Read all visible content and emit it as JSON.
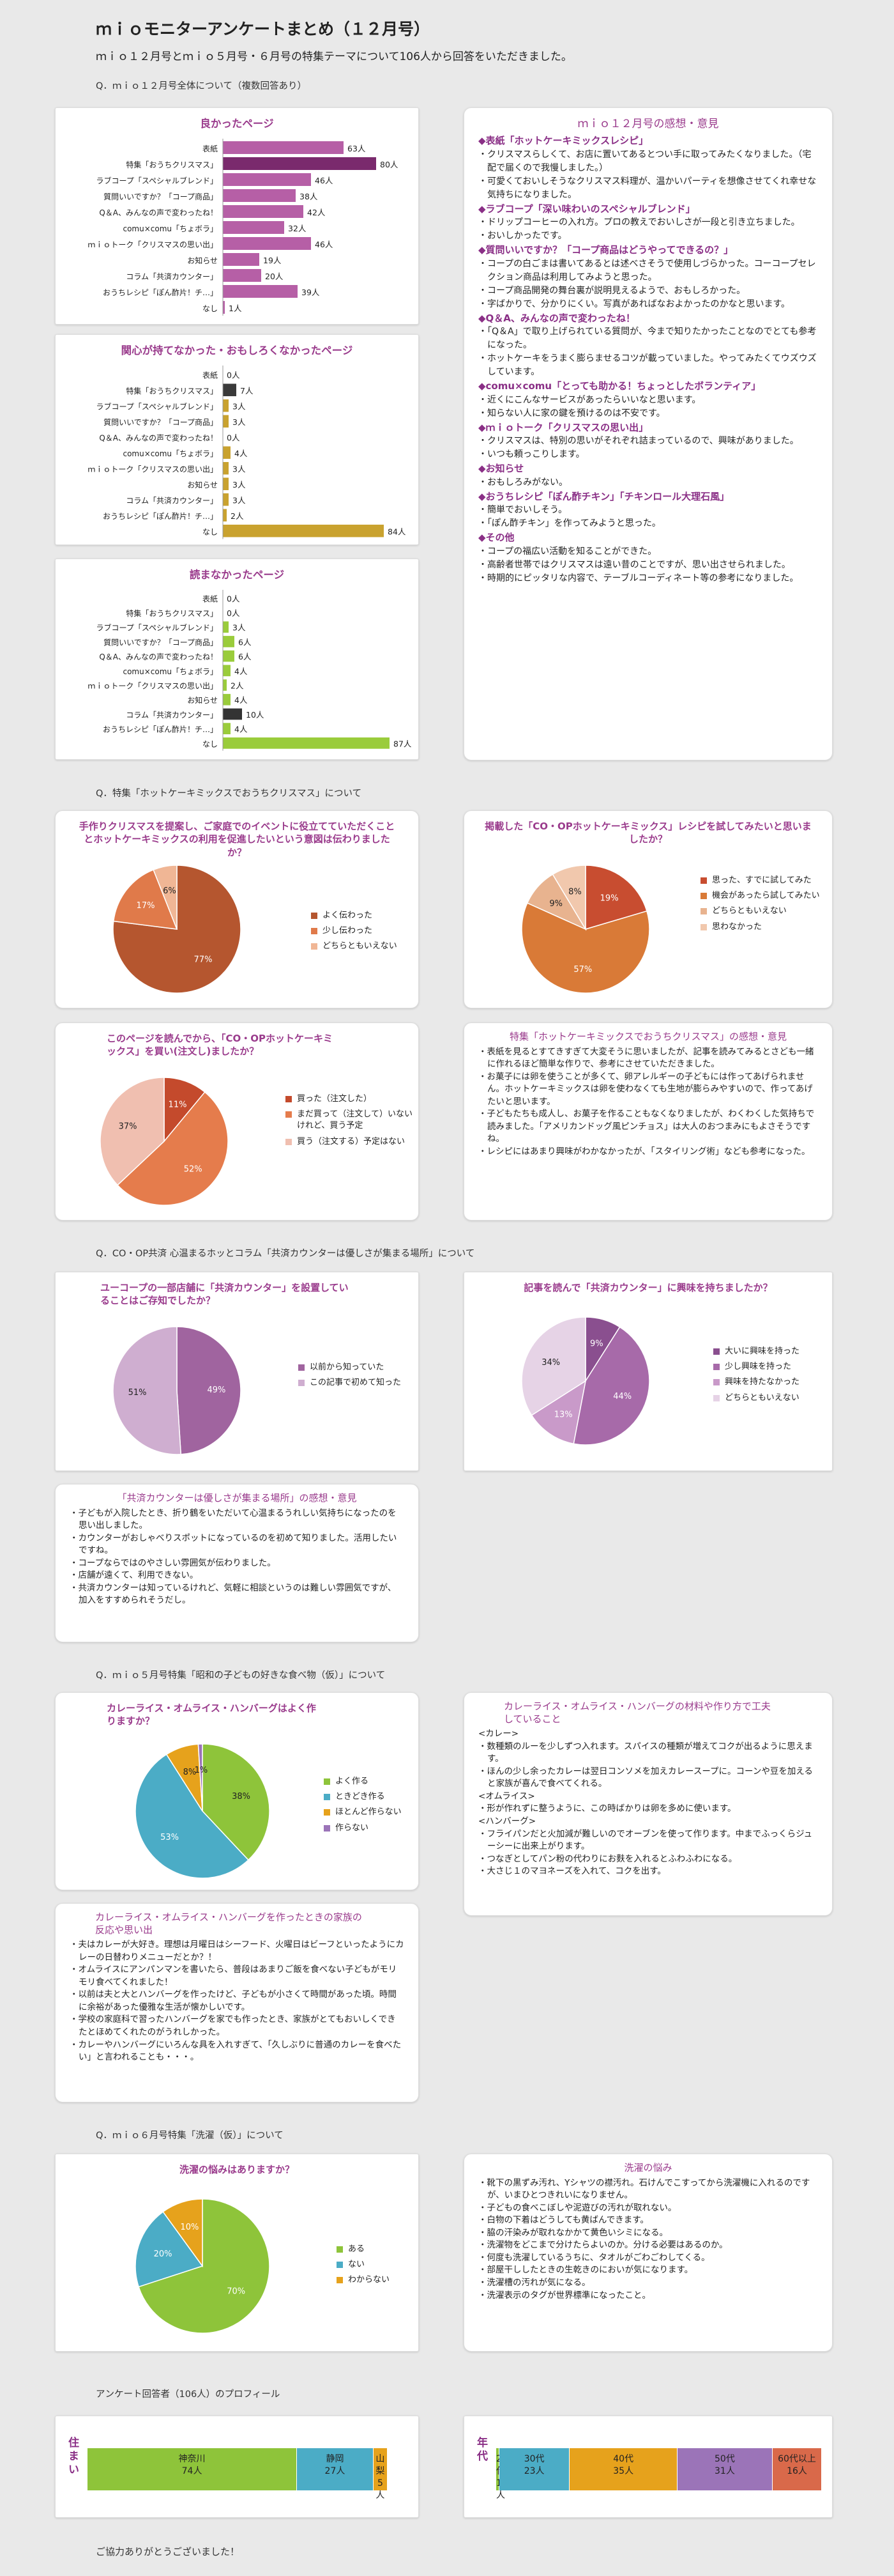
{
  "title": "ｍｉｏモニターアンケートまとめ（１２月号）",
  "subtitle": "ｍｉｏ１２月号とｍｉｏ５月号・６月号の特集テーマについて106人から回答をいただきました。",
  "q1": {
    "heading": "Q．ｍｉｏ１２月号全体について（複数回答あり）",
    "good": {
      "title": "良かったページ"
    },
    "notinterest": {
      "title": "関心が持てなかった・おもしろくなかったページ"
    },
    "notread": {
      "title": "読まなかったページ"
    },
    "categories": [
      "表紙",
      "特集「おうちクリスマス」",
      "ラブコープ「スペシャルブレンド」",
      "質問いいですか？「コープ商品」",
      "Q＆A、みんなの声で変わったね！",
      "comu×comu「ちょボラ」",
      "ｍｉｏトーク「クリスマスの思い出」",
      "お知らせ",
      "コラム「共済カウンター」",
      "おうちレシピ「ぽん酢片！チ…」",
      "なし"
    ],
    "good_labels": [
      "63人",
      "80人",
      "46人",
      "38人",
      "42人",
      "32人",
      "46人",
      "19人",
      "20人",
      "39人",
      "1人"
    ],
    "notinterest_labels": [
      "0人",
      "7人",
      "3人",
      "3人",
      "0人",
      "4人",
      "3人",
      "3人",
      "3人",
      "2人",
      "84人"
    ],
    "notread_labels": [
      "0人",
      "0人",
      "3人",
      "6人",
      "6人",
      "4人",
      "2人",
      "4人",
      "10人",
      "4人",
      "87人"
    ]
  },
  "chart_data": [
    {
      "type": "bar",
      "orientation": "horizontal",
      "title": "良かったページ",
      "categories": [
        "表紙",
        "特集「おうちクリスマス」",
        "ラブコープ「スペシャルブレンド」",
        "質問いいですか？「コープ商品」",
        "Q＆A、みんなの声で変わったね！",
        "comu×comu「ちょボラ」",
        "ｍｉｏトーク「クリスマスの思い出」",
        "お知らせ",
        "コラム「共済カウンター」",
        "おうちレシピ「ぽん酢片！チ…」",
        "なし"
      ],
      "values": [
        63,
        80,
        46,
        38,
        42,
        32,
        46,
        19,
        20,
        39,
        1
      ]
    },
    {
      "type": "bar",
      "orientation": "horizontal",
      "title": "関心が持てなかった・おもしろくなかったページ",
      "values": [
        0,
        7,
        3,
        3,
        0,
        4,
        3,
        3,
        3,
        2,
        84
      ]
    },
    {
      "type": "bar",
      "orientation": "horizontal",
      "title": "読まなかったページ",
      "values": [
        0,
        0,
        3,
        6,
        6,
        4,
        2,
        4,
        10,
        4,
        87
      ]
    },
    {
      "type": "pie",
      "title": "手作りクリスマスを提案し、ご家庭でのイベントに役立てていただくこととホットケーキミックスの利用を促進したいという意図は伝わりましたか？",
      "labels": [
        "よく伝わった",
        "少し伝わった",
        "どちらともいえない"
      ],
      "values": [
        77,
        17,
        6
      ]
    },
    {
      "type": "pie",
      "title": "掲載した「CO・OPホットケーキミックス」レシピを試してみたいと思いましたか？",
      "labels": [
        "思った、すでに試してみた",
        "機会があったら試してみたい",
        "どちらともいえない",
        "思わなかった"
      ],
      "values": [
        19,
        57,
        9,
        8
      ]
    },
    {
      "type": "pie",
      "title": "このページを読んでから、「CO・OPホットケーキミックス」を買い(注文し)ましたか？",
      "labels": [
        "買った（注文した）",
        "まだ買って（注文して）いないけれど、買う予定",
        "買う（注文する）予定はない"
      ],
      "values": [
        11,
        52,
        37
      ]
    },
    {
      "type": "pie",
      "title": "ユーコープの一部店舗に「共済カウンター」を設置していることはご存知でしたか？",
      "labels": [
        "以前から知っていた",
        "この記事で初めて知った"
      ],
      "values": [
        49,
        51
      ]
    },
    {
      "type": "pie",
      "title": "記事を読んで「共済カウンター」に興味を持ちましたか？",
      "labels": [
        "大いに興味を持った",
        "少し興味を持った",
        "興味を持たなかった",
        "どちらともいえない"
      ],
      "values": [
        9,
        44,
        13,
        34
      ]
    },
    {
      "type": "pie",
      "title": "カレーライス・オムライス・ハンバーグはよく作りますか？",
      "labels": [
        "よく作る",
        "ときどき作る",
        "ほとんど作らない",
        "作らない"
      ],
      "values": [
        38,
        53,
        8,
        1
      ]
    },
    {
      "type": "pie",
      "title": "洗濯の悩みはありますか？",
      "labels": [
        "ある",
        "ない",
        "わからない"
      ],
      "values": [
        70,
        20,
        10
      ]
    }
  ],
  "xmas": {
    "heading": "Q．特集「ホットケーキミックスでおうちクリスマス」について",
    "p1_title": "手作りクリスマスを提案し、ご家庭でのイベントに役立てていただくこととホットケーキミックスの利用を促進したいという意図は伝わりましたか？",
    "p1_legend": [
      "よく伝わった",
      "少し伝わった",
      "どちらともいえない"
    ],
    "p1_pct": [
      "77%",
      "17%",
      "6%"
    ],
    "p2_title": "掲載した「CO・OPホットケーキミックス」レシピを試してみたいと思いましたか？",
    "p2_legend": [
      "思った、すでに試してみた",
      "機会があったら試してみたい",
      "どちらともいえない",
      "思わなかった"
    ],
    "p2_pct": [
      "19%",
      "57%",
      "9%",
      "8%"
    ],
    "p3_title": "このページを読んでから、「CO・OPホットケーキミックス」を買い(注文し)ましたか？",
    "p3_legend": [
      "買った（注文した）",
      "まだ買って（注文して）いないけれど、買う予定",
      "買う（注文する）予定はない"
    ],
    "p3_pct": [
      "11%",
      "52%",
      "37%"
    ],
    "comments_title": "特集「ホットケーキミックスでおうちクリスマス」の感想・意見",
    "comments": [
      "表紙を見るとすてきすぎて大変そうに思いましたが、記事を読みてみるとさども一緒に作れるほど簡単な作りで、参考にさせていただきました。",
      "お菓子には卵を使うことが多くて、卵アレルギーの子どもには作ってあげられません。ホットケーキミックスは卵を使わなくても生地が膨らみやすいので、作ってあげたいと思います。",
      "子どもたちも成人し、お菓子を作ることもなくなりましたが、わくわくした気持ちで読みました。「アメリカンドッグ風ピンチョス」は大人のおつまみにもよさそうですね。",
      "レシピにはあまり興味がわかなかったが、「スタイリング術」なども参考になった。"
    ]
  },
  "mio12": {
    "title": "ｍｉｏ１２月号の感想・意見",
    "sections": [
      {
        "head": "◆表紙「ホットケーキミックスレシピ」",
        "items": [
          "クリスマスらしくて、お店に置いてあるとつい手に取ってみたくなりました。（宅配で届くので我慢しました。）",
          "可愛くておいしそうなクリスマス料理が、温かいパーティを想像させてくれ幸せな気持ちになりました。"
        ]
      },
      {
        "head": "◆ラブコープ「深い味わいのスペシャルブレンド」",
        "items": [
          "ドリップコーヒーの入れ方。プロの教えでおいしさが一段と引き立ちました。",
          "おいしかったです。"
        ]
      },
      {
        "head": "◆質問いいですか？「コープ商品はどうやってできるの？」",
        "items": [
          "コープの白ごまは書いてあるとは述べさそうで使用しづらかった。コーコープセレクション商品は利用してみようと思った。",
          "コープ商品開発の舞台裏が説明見えるようで、おもしろかった。",
          "字ばかりで、分かりにくい。写真があればなおよかったのかなと思います。"
        ]
      },
      {
        "head": "◆Q＆A、みんなの声で変わったね！",
        "items": [
          "「Q＆A」で取り上げられている質問が、今まで知りたかったことなのでとても参考になった。",
          "ホットケーキをうまく膨らませるコツが載っていました。やってみたくてウズウズしています。"
        ]
      },
      {
        "head": "◆comu×comu「とっても助かる！ちょっとしたボランティア」",
        "items": [
          "近くにこんなサービスがあったらいいなと思います。",
          "知らない人に家の鍵を預けるのは不安です。"
        ]
      },
      {
        "head": "◆ｍｉｏトーク「クリスマスの思い出」",
        "items": [
          "クリスマスは、特別の思いがそれぞれ詰まっているので、興味がありました。",
          "いつも頼っこりします。"
        ]
      },
      {
        "head": "◆お知らせ",
        "items": [
          "おもしろみがない。"
        ]
      },
      {
        "head": "◆おうちレシピ「ぽん酢チキン」「チキンロール大理石風」",
        "items": [
          "簡単でおいしそう。",
          "「ぽん酢チキン」を作ってみようと思った。"
        ]
      },
      {
        "head": "◆その他",
        "items": [
          "コープの福広い活動を知ることができた。",
          "高齢者世帯ではクリスマスは遠い昔のことですが、思い出させられました。",
          "時期的にピッタリな内容で、テーブルコーディネート等の参考になりました。"
        ]
      }
    ]
  },
  "kyosai": {
    "heading": "Q．CO・OP共済 心温まるホッとコラム「共済カウンターは優しさが集まる場所」について",
    "p1_title": "ユーコープの一部店舗に「共済カウンター」を設置していることはご存知でしたか？",
    "p1_legend": [
      "以前から知っていた",
      "この記事で初めて知った"
    ],
    "p1_pct": [
      "49%",
      "51%"
    ],
    "p2_title": "記事を読んで「共済カウンター」に興味を持ちましたか？",
    "p2_legend": [
      "大いに興味を持った",
      "少し興味を持った",
      "興味を持たなかった",
      "どちらともいえない"
    ],
    "p2_pct": [
      "9%",
      "44%",
      "13%",
      "34%"
    ],
    "comments_title": "「共済カウンターは優しさが集まる場所」の感想・意見",
    "comments": [
      "子どもが入院したとき、折り鶴をいただいて心温まるうれしい気持ちになったのを思い出しました。",
      "カウンターがおしゃべりスポットになっているのを初めて知りました。活用したいですね。",
      "コープならではのやさしい雰囲気が伝わりました。",
      "店舗が遠くて、利用できない。",
      "共済カウンターは知っているけれど、気軽に相談というのは難しい雰囲気ですが、加入をすすめられそうだし。"
    ]
  },
  "may": {
    "heading": "Q．ｍｉｏ５月号特集「昭和の子どもの好きな食べ物（仮）」について",
    "p1_title": "カレーライス・オムライス・ハンバーグはよく作りますか？",
    "p1_legend": [
      "よく作る",
      "ときどき作る",
      "ほとんど作らない",
      "作らない"
    ],
    "p1_pct": [
      "38%",
      "53%",
      "8%",
      "1%"
    ],
    "ing_title": "カレーライス・オムライス・ハンバーグの材料や作り方で工夫していること",
    "ing": [
      {
        "h": "<カレー>",
        "items": [
          "数種類のルーを少しずつ入れます。スパイスの種類が増えてコクが出るように思えます。",
          "ほんの少し余ったカレーは翌日コンソメを加えカレースープに。コーンや豆を加えると家族が喜んで食べてくれる。"
        ]
      },
      {
        "h": "<オムライス>",
        "items": [
          "形が作れずに整うように、この時ばかりは卵を多めに使います。"
        ]
      },
      {
        "h": "<ハンバーグ>",
        "items": [
          "フライパンだと火加減が難しいのでオーブンを使って作ります。中までふっくらジューシーに出来上がります。",
          "つなぎとしてパン粉の代わりにお麩を入れるとふわふわになる。",
          "大さじ１のマヨネーズを入れて、コクを出す。"
        ]
      }
    ],
    "mem_title": "カレーライス・オムライス・ハンバーグを作ったときの家族の反応や思い出",
    "mem": [
      "夫はカレーが大好き。理想は月曜日はシーフード、火曜日はビーフといったようにカレーの日替わりメニューだとか？！",
      "オムライスにアンパンマンを書いたら、普段はあまりご飯を食べない子どもがモリモリ食べてくれました！",
      "以前は夫と大とハンバーグを作ったけど、子どもが小さくて時間があった頃。時間に余裕があった優雅な生活が懐かしいです。",
      "学校の家庭科で習ったハンバーグを家でも作ったとき、家族がとてもおいしくできたとほめてくれたのがうれしかった。",
      "カレーやハンバーグにいろんな具を入れすぎて、「久しぶりに普通のカレーを食べたい」と言われることも・・・。"
    ]
  },
  "june": {
    "heading": "Q．ｍｉｏ６月号特集「洗濯（仮）」について",
    "p1_title": "洗濯の悩みはありますか？",
    "p1_legend": [
      "ある",
      "ない",
      "わからない"
    ],
    "p1_pct": [
      "70%",
      "20%",
      "10%"
    ],
    "comments_title": "洗濯の悩み",
    "comments": [
      "靴下の黒ずみ汚れ、Yシャツの襟汚れ。石けんでこすってから洗濯機に入れるのですが、いまひとつきれいになりません。",
      "子どもの食べこぼしや泥遊びの汚れが取れない。",
      "白物の下着はどうしても黄ばんできます。",
      "脇の汗染みが取れなかかて黄色いシミになる。",
      "洗濯物をどこまで分けたらよいのか。分ける必要はあるのか。",
      "何度も洗濯しているうちに、タオルがごわごわしてくる。",
      "部屋干ししたときの生乾きのにおいが気になります。",
      "洗濯槽の汚れが気になる。",
      "洗濯表示のタグが世界標準になったこと。"
    ]
  },
  "profile": {
    "heading": "アンケート回答者（106人）のプロフィール",
    "res_label": "住まい",
    "age_label": "年代",
    "residence": [
      {
        "name": "神奈川",
        "count": "74人",
        "value": 74,
        "color": "#8ec43a"
      },
      {
        "name": "静岡",
        "count": "27人",
        "value": 27,
        "color": "#4bacc6"
      },
      {
        "name": "山梨",
        "count": "5人",
        "value": 5,
        "color": "#e6a21c"
      }
    ],
    "age": [
      {
        "name": "20代",
        "count": "1人",
        "value": 1,
        "color": "#8ec43a"
      },
      {
        "name": "30代",
        "count": "23人",
        "value": 23,
        "color": "#4bacc6"
      },
      {
        "name": "40代",
        "count": "35人",
        "value": 35,
        "color": "#e6a21c"
      },
      {
        "name": "50代",
        "count": "31人",
        "value": 31,
        "color": "#9b74b8"
      },
      {
        "name": "60代以上",
        "count": "16人",
        "value": 16,
        "color": "#d9694a"
      }
    ]
  },
  "footer": "ご協力ありがとうございました！",
  "colors": {
    "good": "#b65fa6",
    "good_hi": "#7a2a6d",
    "notint": "#c9a22f",
    "notint_hi": "#3a3a3a",
    "notread": "#9acc3b",
    "notread_hi": "#333333"
  }
}
